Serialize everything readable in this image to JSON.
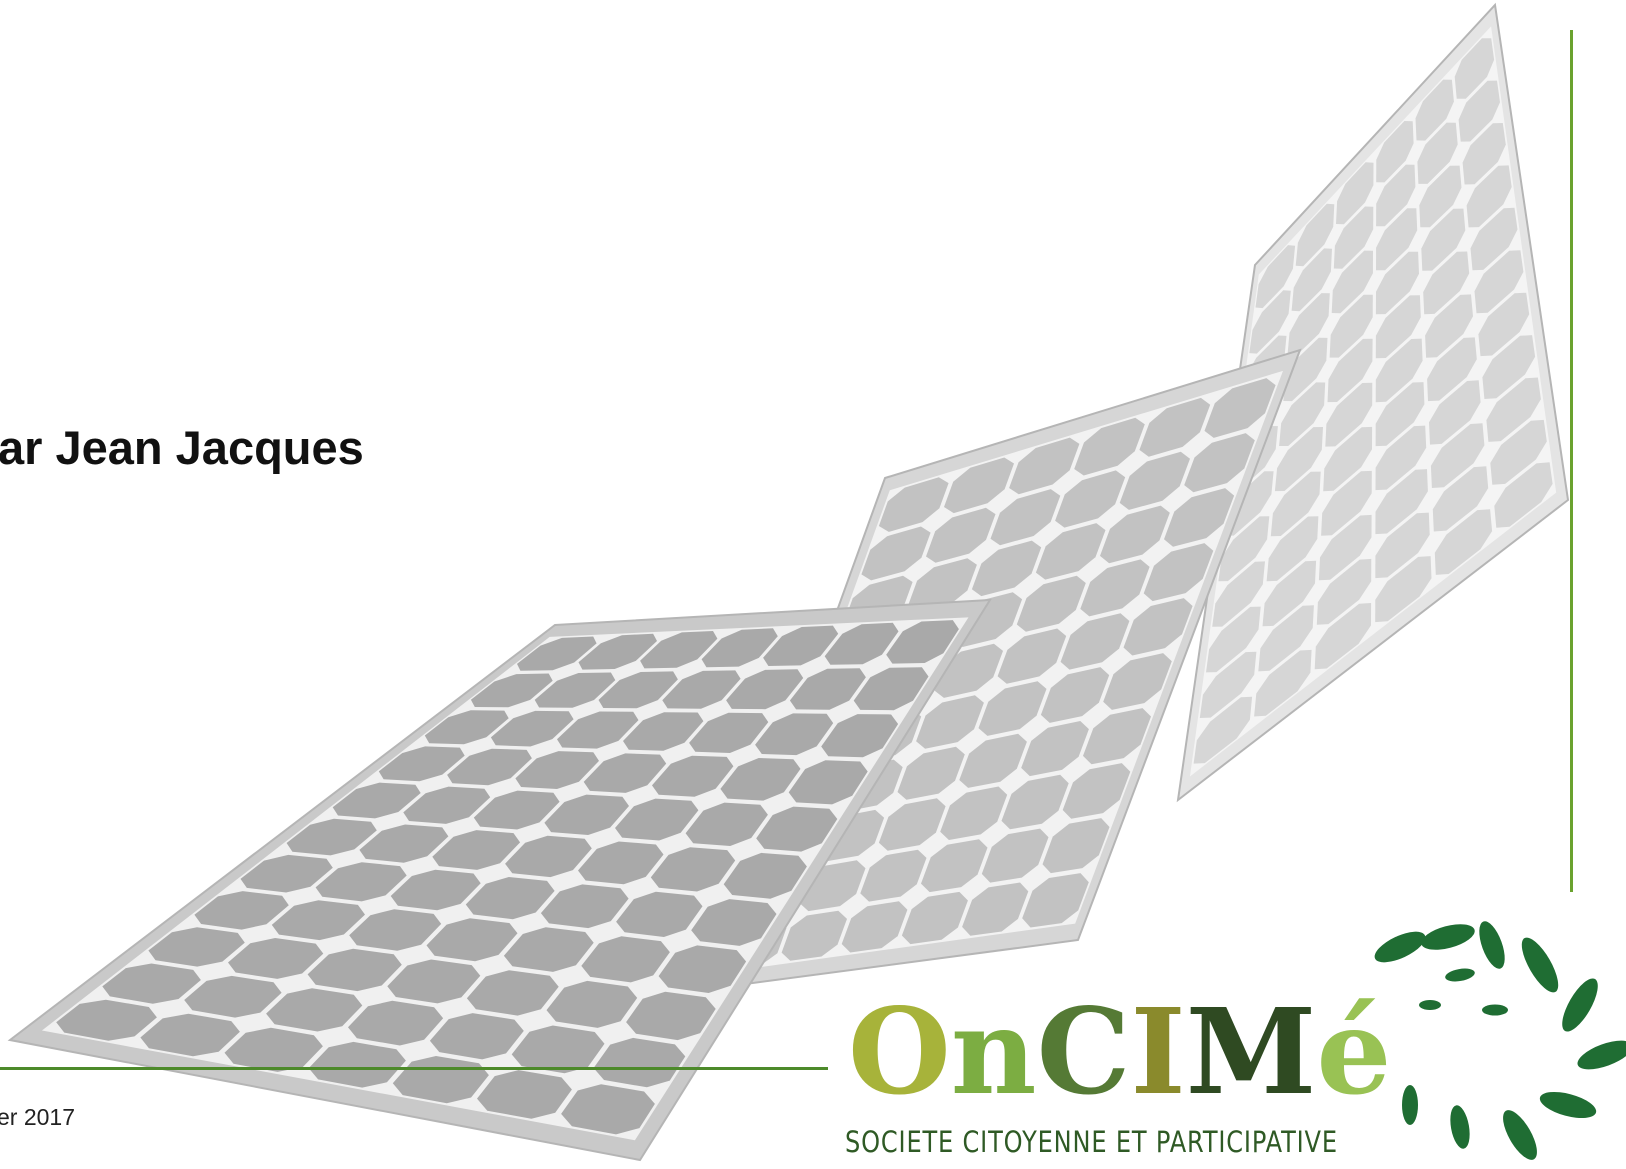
{
  "slide": {
    "author": "ar Jean Jacques",
    "date": "er 2017"
  },
  "logo": {
    "letters": [
      {
        "char": "O",
        "color": "#a7b33a"
      },
      {
        "char": "n",
        "color": "#7cad42"
      },
      {
        "char": "C",
        "color": "#557a35"
      },
      {
        "char": "I",
        "color": "#8a8a2c"
      },
      {
        "char": "M",
        "color": "#2f4a22"
      },
      {
        "char": "é",
        "color": "#99c254"
      }
    ],
    "tagline": "SOCIETE CITOYENNE ET PARTICIPATIVE",
    "leaf_color": "#1f6d33"
  },
  "colors": {
    "rule": "#4d8a2a",
    "panel_frame": "#c9c9c9",
    "panel_cell_front": "#a9a9a9",
    "panel_cell_middle": "#c2c2c2",
    "panel_cell_back": "#d6d6d6"
  },
  "icons": [
    "solar-panels-illustration",
    "leaf-icon"
  ]
}
